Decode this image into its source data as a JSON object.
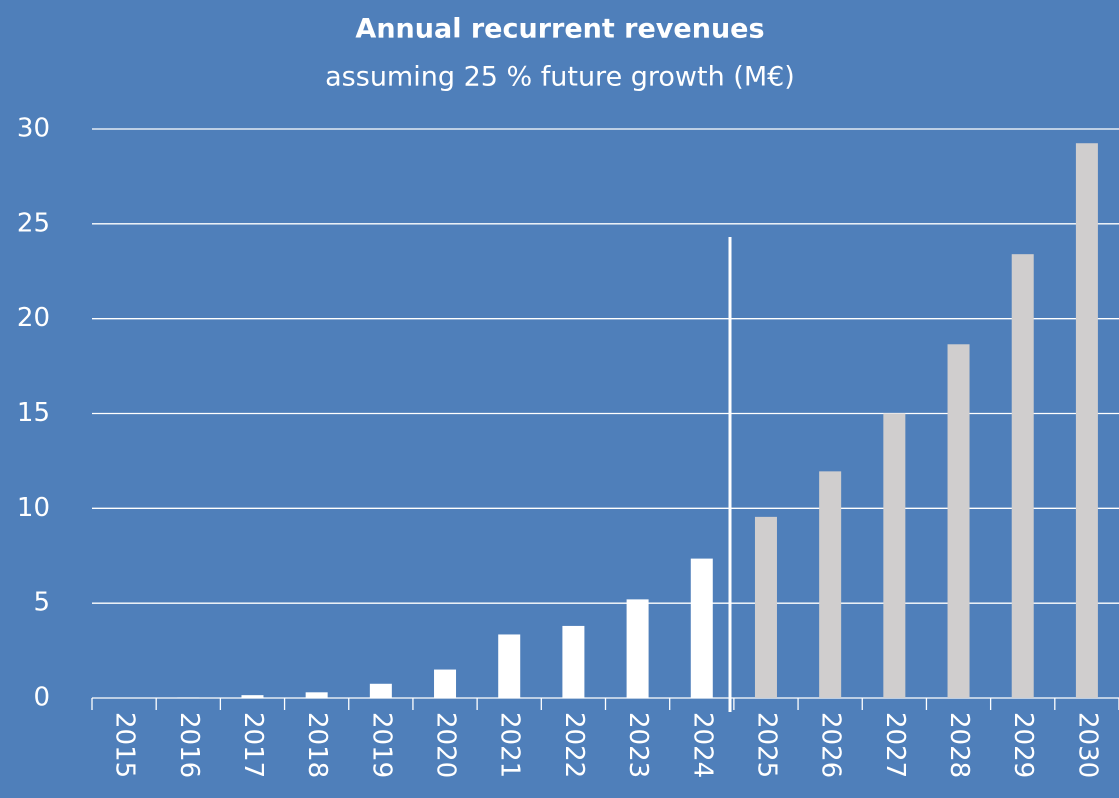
{
  "chart_data": {
    "type": "bar",
    "title": "Annual recurrent revenues",
    "subtitle": "assuming 25 % future growth (M€)",
    "categories": [
      "2015",
      "2016",
      "2017",
      "2018",
      "2019",
      "2020",
      "2021",
      "2022",
      "2023",
      "2024",
      "2025",
      "2026",
      "2027",
      "2028",
      "2029",
      "2030"
    ],
    "values": [
      0.02,
      0.03,
      0.15,
      0.3,
      0.75,
      1.5,
      3.35,
      3.8,
      5.2,
      7.35,
      9.55,
      11.95,
      15.0,
      18.65,
      23.4,
      29.25
    ],
    "colors": [
      "#ffffff",
      "#ffffff",
      "#ffffff",
      "#ffffff",
      "#ffffff",
      "#ffffff",
      "#ffffff",
      "#ffffff",
      "#ffffff",
      "#ffffff",
      "#d0cece",
      "#d0cece",
      "#d0cece",
      "#d0cece",
      "#d0cece",
      "#d0cece"
    ],
    "ylim": [
      0,
      30
    ],
    "yticks": [
      0,
      5,
      10,
      15,
      20,
      25,
      30
    ],
    "grid": true
  }
}
